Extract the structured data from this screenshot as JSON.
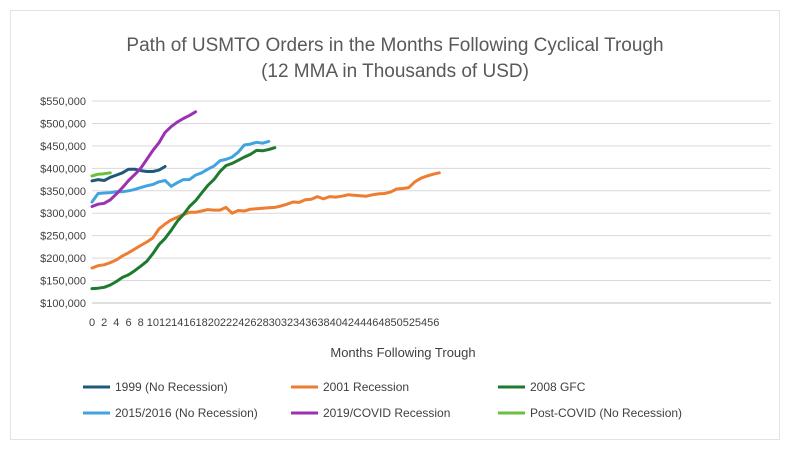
{
  "chart_data": {
    "type": "line",
    "title": "Path of USMTO Orders in the Months Following Cyclical Trough",
    "subtitle": "(12 MMA in Thousands of USD)",
    "xlabel": "Months Following Trough",
    "ylabel": "",
    "ylim": [
      100000,
      550000
    ],
    "yticks": [
      "$100,000",
      "$150,000",
      "$200,000",
      "$250,000",
      "$300,000",
      "$350,000",
      "$400,000",
      "$450,000",
      "$500,000",
      "$550,000"
    ],
    "xlim": [
      0,
      58
    ],
    "xticks": [
      0,
      2,
      4,
      6,
      8,
      10,
      12,
      14,
      16,
      18,
      20,
      22,
      24,
      26,
      28,
      30,
      32,
      34,
      36,
      38,
      40,
      42,
      44,
      46,
      48,
      50,
      52,
      54,
      56
    ],
    "grid": "horizontal",
    "legend_position": "bottom",
    "series": [
      {
        "name": "1999 (No Recession)",
        "color": "#1f5a7a",
        "x": [
          0,
          1,
          2,
          3,
          4,
          5,
          6,
          7,
          8,
          9,
          10,
          11,
          12
        ],
        "values": [
          372000,
          375000,
          373000,
          380000,
          385000,
          390000,
          398000,
          398000,
          395000,
          393000,
          393000,
          396000,
          404000
        ]
      },
      {
        "name": "2001 Recession",
        "color": "#ed7d31",
        "x": [
          0,
          1,
          2,
          3,
          4,
          5,
          6,
          7,
          8,
          9,
          10,
          11,
          12,
          13,
          14,
          15,
          16,
          17,
          18,
          19,
          20,
          21,
          22,
          23,
          24,
          25,
          26,
          27,
          28,
          29,
          30,
          31,
          32,
          33,
          34,
          35,
          36,
          37,
          38,
          39,
          40,
          41,
          42,
          43,
          44,
          45,
          46,
          47,
          48,
          49,
          50,
          51,
          52,
          53,
          54,
          55,
          56,
          57
        ],
        "values": [
          178000,
          183000,
          185000,
          190000,
          196000,
          205000,
          212000,
          220000,
          228000,
          236000,
          245000,
          265000,
          276000,
          285000,
          291000,
          297000,
          302000,
          302000,
          305000,
          308000,
          307000,
          307000,
          313000,
          300000,
          306000,
          305000,
          309000,
          310000,
          311000,
          312000,
          313000,
          316000,
          320000,
          325000,
          324000,
          330000,
          331000,
          337000,
          332000,
          337000,
          336000,
          338000,
          341000,
          340000,
          339000,
          338000,
          341000,
          343000,
          344000,
          347000,
          354000,
          355000,
          357000,
          370000,
          378000,
          383000,
          387000,
          390000
        ]
      },
      {
        "name": "2008 GFC",
        "color": "#1e7a2e",
        "x": [
          0,
          1,
          2,
          3,
          4,
          5,
          6,
          7,
          8,
          9,
          10,
          11,
          12,
          13,
          14,
          15,
          16,
          17,
          18,
          19,
          20,
          21,
          22,
          23,
          24,
          25,
          26,
          27,
          28,
          29,
          30
        ],
        "values": [
          132000,
          133000,
          135000,
          140000,
          148000,
          157000,
          163000,
          172000,
          182000,
          193000,
          210000,
          230000,
          244000,
          262000,
          282000,
          297000,
          315000,
          328000,
          345000,
          362000,
          375000,
          393000,
          406000,
          411000,
          418000,
          425000,
          431000,
          440000,
          439000,
          442000,
          446000
        ]
      },
      {
        "name": "2015/2016 (No Recession)",
        "color": "#41a3e0",
        "x": [
          0,
          1,
          2,
          3,
          4,
          5,
          6,
          7,
          8,
          9,
          10,
          11,
          12,
          13,
          14,
          15,
          16,
          17,
          18,
          19,
          20,
          21,
          22,
          23,
          24,
          25,
          26,
          27,
          28,
          29
        ],
        "values": [
          325000,
          344000,
          345000,
          346000,
          348000,
          348000,
          350000,
          353000,
          357000,
          361000,
          364000,
          370000,
          373000,
          360000,
          368000,
          375000,
          375000,
          385000,
          390000,
          398000,
          405000,
          417000,
          420000,
          425000,
          436000,
          452000,
          454000,
          458000,
          456000,
          460000
        ]
      },
      {
        "name": "2019/COVID Recession",
        "color": "#9b32b4",
        "x": [
          0,
          1,
          2,
          3,
          4,
          5,
          6,
          7,
          8,
          9,
          10,
          11,
          12,
          13,
          14,
          15,
          16,
          17
        ],
        "values": [
          315000,
          320000,
          322000,
          330000,
          343000,
          357000,
          373000,
          386000,
          400000,
          420000,
          440000,
          457000,
          480000,
          493000,
          503000,
          511000,
          518000,
          526000
        ]
      },
      {
        "name": "Post-COVID (No Recession)",
        "color": "#6abf3e",
        "x": [
          0,
          1,
          2,
          3
        ],
        "values": [
          383000,
          387000,
          388000,
          390000
        ]
      }
    ]
  }
}
